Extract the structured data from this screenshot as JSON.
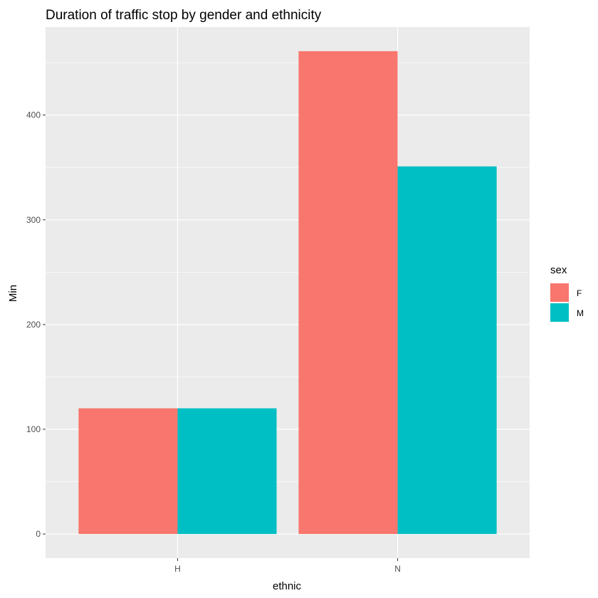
{
  "chart_data": {
    "type": "bar",
    "title": "Duration of traffic stop by gender and ethnicity",
    "xlabel": "ethnic",
    "ylabel": "Min",
    "categories": [
      "H",
      "N"
    ],
    "series": [
      {
        "name": "F",
        "values": [
          120,
          461
        ],
        "color": "#F8766D"
      },
      {
        "name": "M",
        "values": [
          120,
          351
        ],
        "color": "#00BFC4"
      }
    ],
    "y_ticks": [
      0,
      100,
      200,
      300,
      400
    ],
    "ylim": [
      -23.05,
      484.05
    ],
    "grid": true,
    "legend": {
      "title": "sex",
      "placement": "right"
    },
    "panel_background": "#EBEBEB"
  }
}
